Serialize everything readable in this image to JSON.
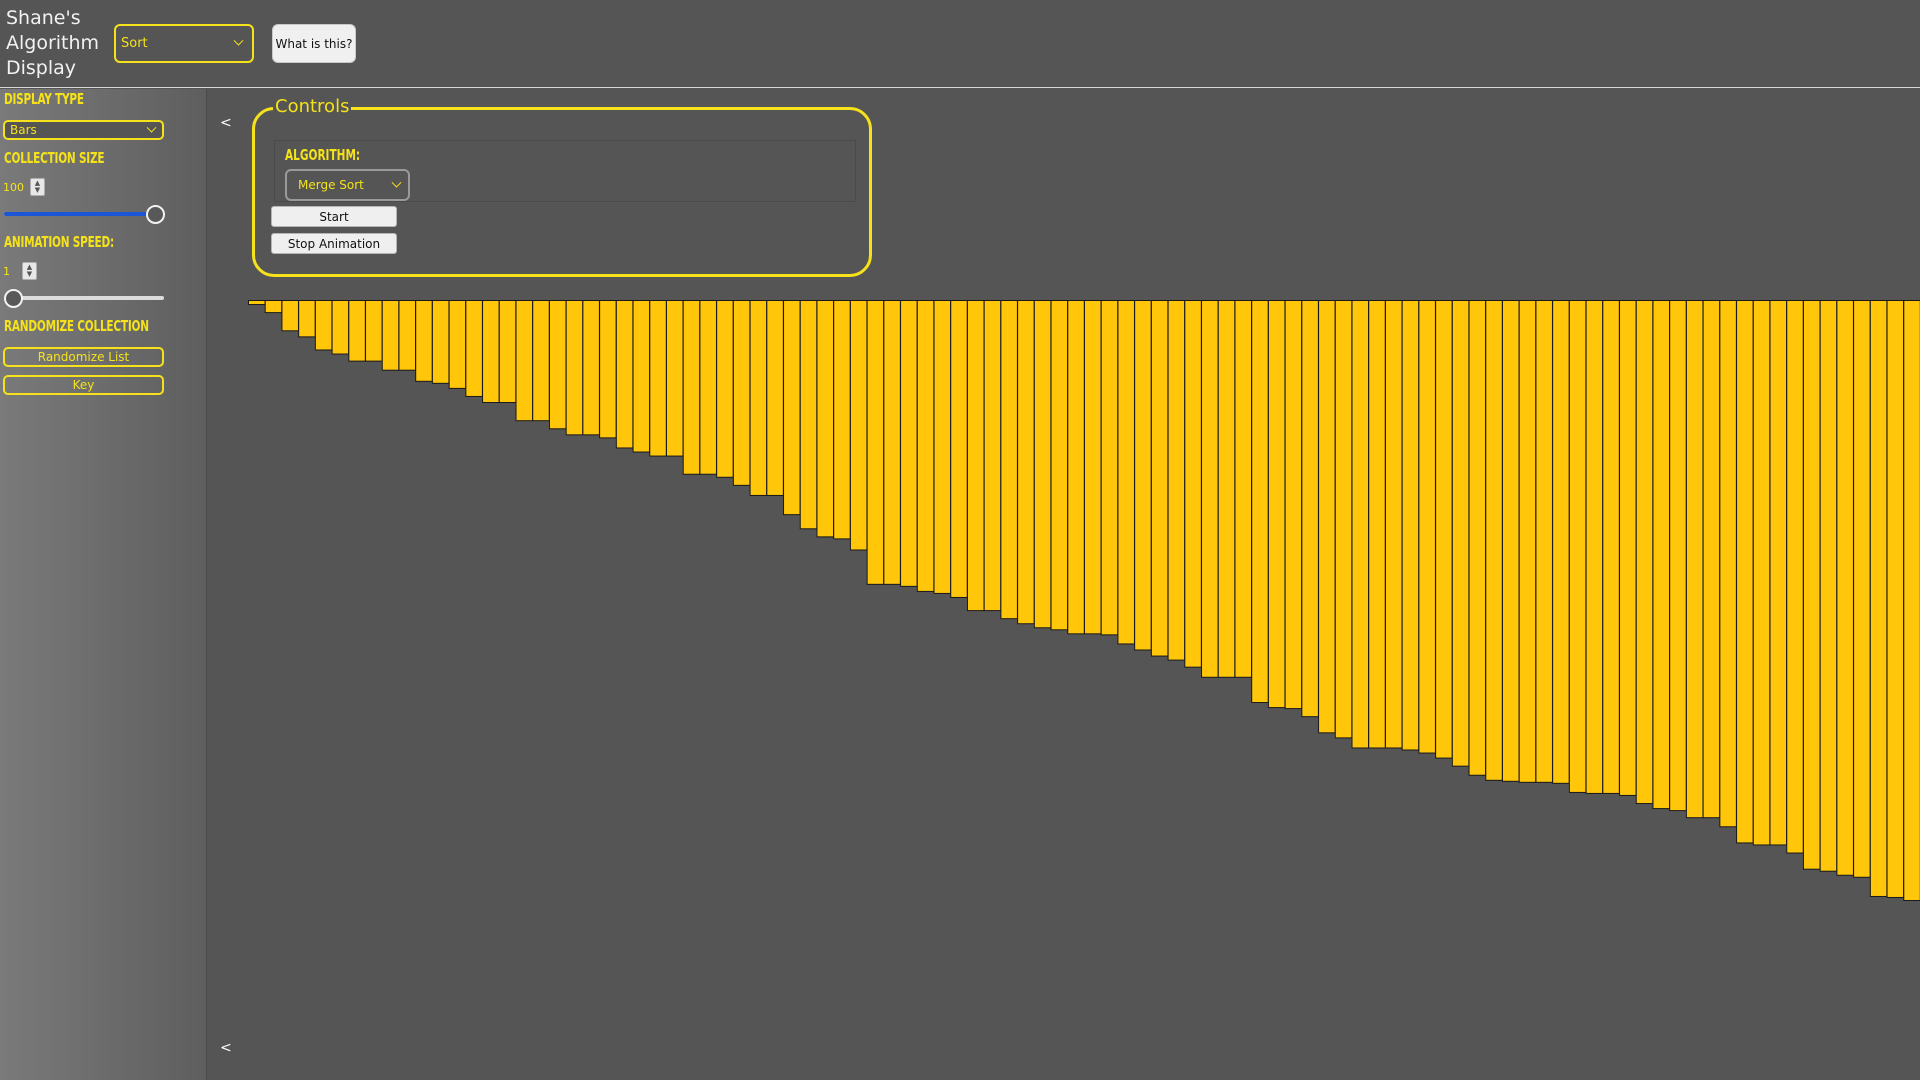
{
  "header": {
    "title": "Shane's Algorithm Display",
    "mode_select": "Sort",
    "what_button": "What is this?"
  },
  "sidebar": {
    "display_type_heading": "DISPLAY TYPE",
    "display_type_value": "Bars",
    "collection_size_heading": "COLLECTION SIZE",
    "collection_size_value": "100",
    "collection_size_slider_fraction": 1.0,
    "animation_speed_heading": "ANIMATION SPEED:",
    "animation_speed_value": "1",
    "animation_speed_slider_fraction": 0.0,
    "randomize_heading": "RANDOMIZE COLLECTION",
    "randomize_button": "Randomize List",
    "key_button": "Key"
  },
  "main": {
    "collapse_top": "<",
    "collapse_bottom": "<",
    "controls": {
      "legend": "Controls",
      "algorithm_label": "ALGORITHM:",
      "algorithm_value": "Merge Sort",
      "start_button": "Start",
      "stop_button": "Stop Animation"
    }
  },
  "colors": {
    "accent": "#f5e21a",
    "bar_fill": "#ffc60a",
    "bar_stroke": "#1a1a1a",
    "background": "#555555"
  },
  "chart_data": {
    "type": "bar",
    "values": [
      4,
      12,
      30,
      36,
      49,
      53,
      60,
      60,
      69,
      69,
      80,
      82,
      87,
      95,
      101,
      101,
      119,
      119,
      127,
      133,
      133,
      136,
      146,
      150,
      154,
      154,
      172,
      172,
      175,
      183,
      193,
      193,
      212,
      226,
      234,
      236,
      247,
      281,
      281,
      283,
      288,
      290,
      294,
      307,
      307,
      315,
      320,
      324,
      326,
      330,
      330,
      331,
      340,
      346,
      352,
      356,
      363,
      373,
      373,
      373,
      398,
      403,
      404,
      412,
      428,
      433,
      443,
      443,
      443,
      445,
      448,
      453,
      461,
      470,
      475,
      476,
      477,
      477,
      478,
      487,
      488,
      488,
      490,
      498,
      503,
      505,
      512,
      512,
      521,
      537,
      539,
      539,
      547,
      563,
      565,
      569,
      571,
      590,
      591,
      594
    ]
  }
}
